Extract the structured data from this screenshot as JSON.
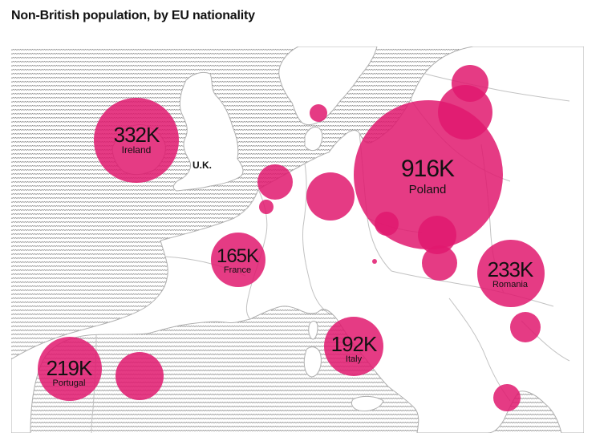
{
  "title": "Non-British population, by EU nationality",
  "colors": {
    "bubble": "#e0196f",
    "sea_hatch": "#8a8a8a",
    "land": "#ffffff",
    "border": "#b8b8b8",
    "label": "#111111"
  },
  "uk_label": "U.K.",
  "labeled_bubbles": [
    {
      "country": "Poland",
      "value_label": "916K",
      "value": 916000
    },
    {
      "country": "Ireland",
      "value_label": "332K",
      "value": 332000
    },
    {
      "country": "Romania",
      "value_label": "233K",
      "value": 233000
    },
    {
      "country": "Portugal",
      "value_label": "219K",
      "value": 219000
    },
    {
      "country": "Italy",
      "value_label": "192K",
      "value": 192000
    },
    {
      "country": "France",
      "value_label": "165K",
      "value": 165000
    }
  ]
}
